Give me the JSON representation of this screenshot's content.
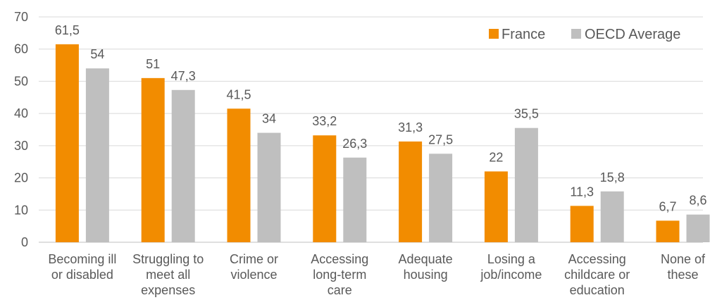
{
  "chart_data": {
    "type": "bar",
    "categories": [
      [
        "Becoming ill",
        "or disabled"
      ],
      [
        "Struggling to",
        "meet all",
        "expenses"
      ],
      [
        "Crime or",
        "violence"
      ],
      [
        "Accessing",
        "long-term",
        "care"
      ],
      [
        "Adequate",
        "housing"
      ],
      [
        "Losing a",
        "job/income"
      ],
      [
        "Accessing",
        "childcare or",
        "education"
      ],
      [
        "None of",
        "these"
      ]
    ],
    "series": [
      {
        "name": "France",
        "color": "#F28C00",
        "values": [
          61.5,
          51,
          41.5,
          33.2,
          31.3,
          22,
          11.3,
          6.7
        ],
        "labels": [
          "61,5",
          "51",
          "41,5",
          "33,2",
          "31,3",
          "22",
          "11,3",
          "6,7"
        ]
      },
      {
        "name": "OECD Average",
        "color": "#BFBFBF",
        "values": [
          54,
          47.3,
          34,
          26.3,
          27.5,
          35.5,
          15.8,
          8.6
        ],
        "labels": [
          "54",
          "47,3",
          "34",
          "26,3",
          "27,5",
          "35,5",
          "15,8",
          "8,6"
        ]
      }
    ],
    "yticks": [
      0,
      10,
      20,
      30,
      40,
      50,
      60,
      70
    ],
    "ylim": [
      0,
      70
    ],
    "grid": true,
    "gridColor": "#D9D9D9",
    "legend": "top-right"
  }
}
